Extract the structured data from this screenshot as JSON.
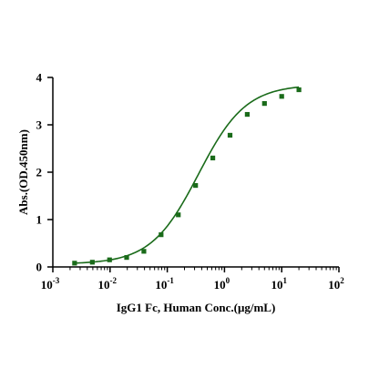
{
  "chart_data": {
    "type": "scatter",
    "title": "",
    "xlabel": "IgG1 Fc, Human Conc.(μg/mL)",
    "ylabel": "Abs.(OD.450nm)",
    "xscale": "log",
    "xlim": [
      0.001,
      100
    ],
    "ylim": [
      0,
      4
    ],
    "grid": false,
    "x_ticks": [
      {
        "base": "10",
        "exp": "-3"
      },
      {
        "base": "10",
        "exp": "-2"
      },
      {
        "base": "10",
        "exp": "-1"
      },
      {
        "base": "10",
        "exp": "0"
      },
      {
        "base": "10",
        "exp": "1"
      },
      {
        "base": "10",
        "exp": "2"
      }
    ],
    "y_ticks": [
      "0",
      "1",
      "2",
      "3",
      "4"
    ],
    "series": [
      {
        "color": "#1a6b1a",
        "marker": "square",
        "x": [
          0.0024,
          0.0049,
          0.0098,
          0.0195,
          0.039,
          0.078,
          0.156,
          0.3125,
          0.625,
          1.25,
          2.5,
          5,
          10,
          20
        ],
        "y": [
          0.08,
          0.1,
          0.15,
          0.2,
          0.33,
          0.68,
          1.1,
          1.72,
          2.3,
          2.78,
          3.22,
          3.45,
          3.6,
          3.74
        ],
        "fit": "4PL sigmoid"
      }
    ]
  }
}
